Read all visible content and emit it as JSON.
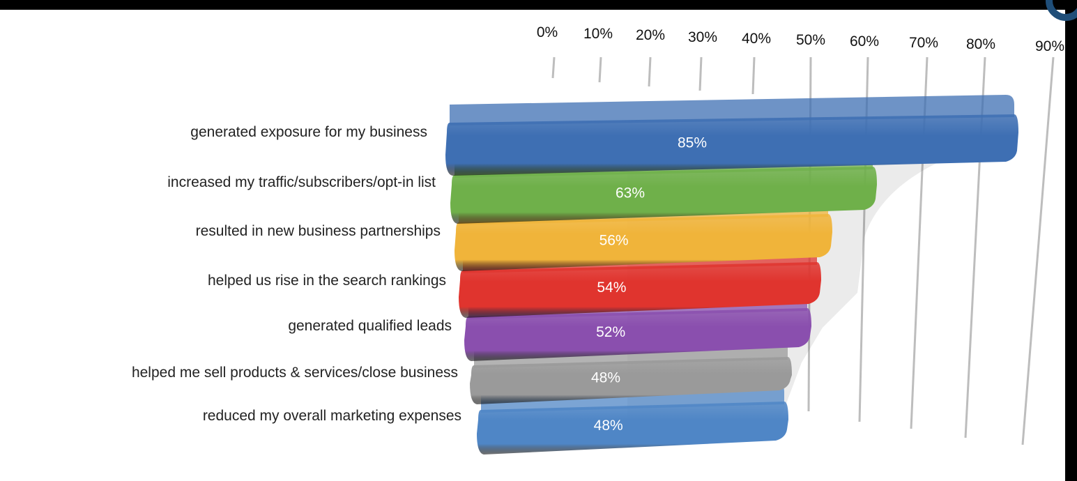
{
  "chart_data": {
    "type": "bar",
    "orientation": "horizontal",
    "style": "3d-cylindrical",
    "categories": [
      "generated exposure for my business",
      "increased my traffic/subscribers/opt-in list",
      "resulted in new business partnerships",
      "helped us rise in the search rankings",
      "generated qualified leads",
      "helped me sell products & services/close business",
      "reduced my overall marketing expenses"
    ],
    "values": [
      85,
      63,
      56,
      54,
      52,
      48,
      48
    ],
    "data_labels": [
      "85%",
      "63%",
      "56%",
      "54%",
      "52%",
      "48%",
      "48%"
    ],
    "colors": [
      "#3e6fb3",
      "#6fb04a",
      "#f0b43a",
      "#e0342e",
      "#8a4fae",
      "#9a9a9a",
      "#4f86c6"
    ],
    "xlim": [
      0,
      90
    ],
    "x_ticks": [
      "0%",
      "10%",
      "20%",
      "30%",
      "40%",
      "50%",
      "60%",
      "70%",
      "80%",
      "90%"
    ],
    "axis_position": "top",
    "grid": true,
    "legend": "none"
  }
}
